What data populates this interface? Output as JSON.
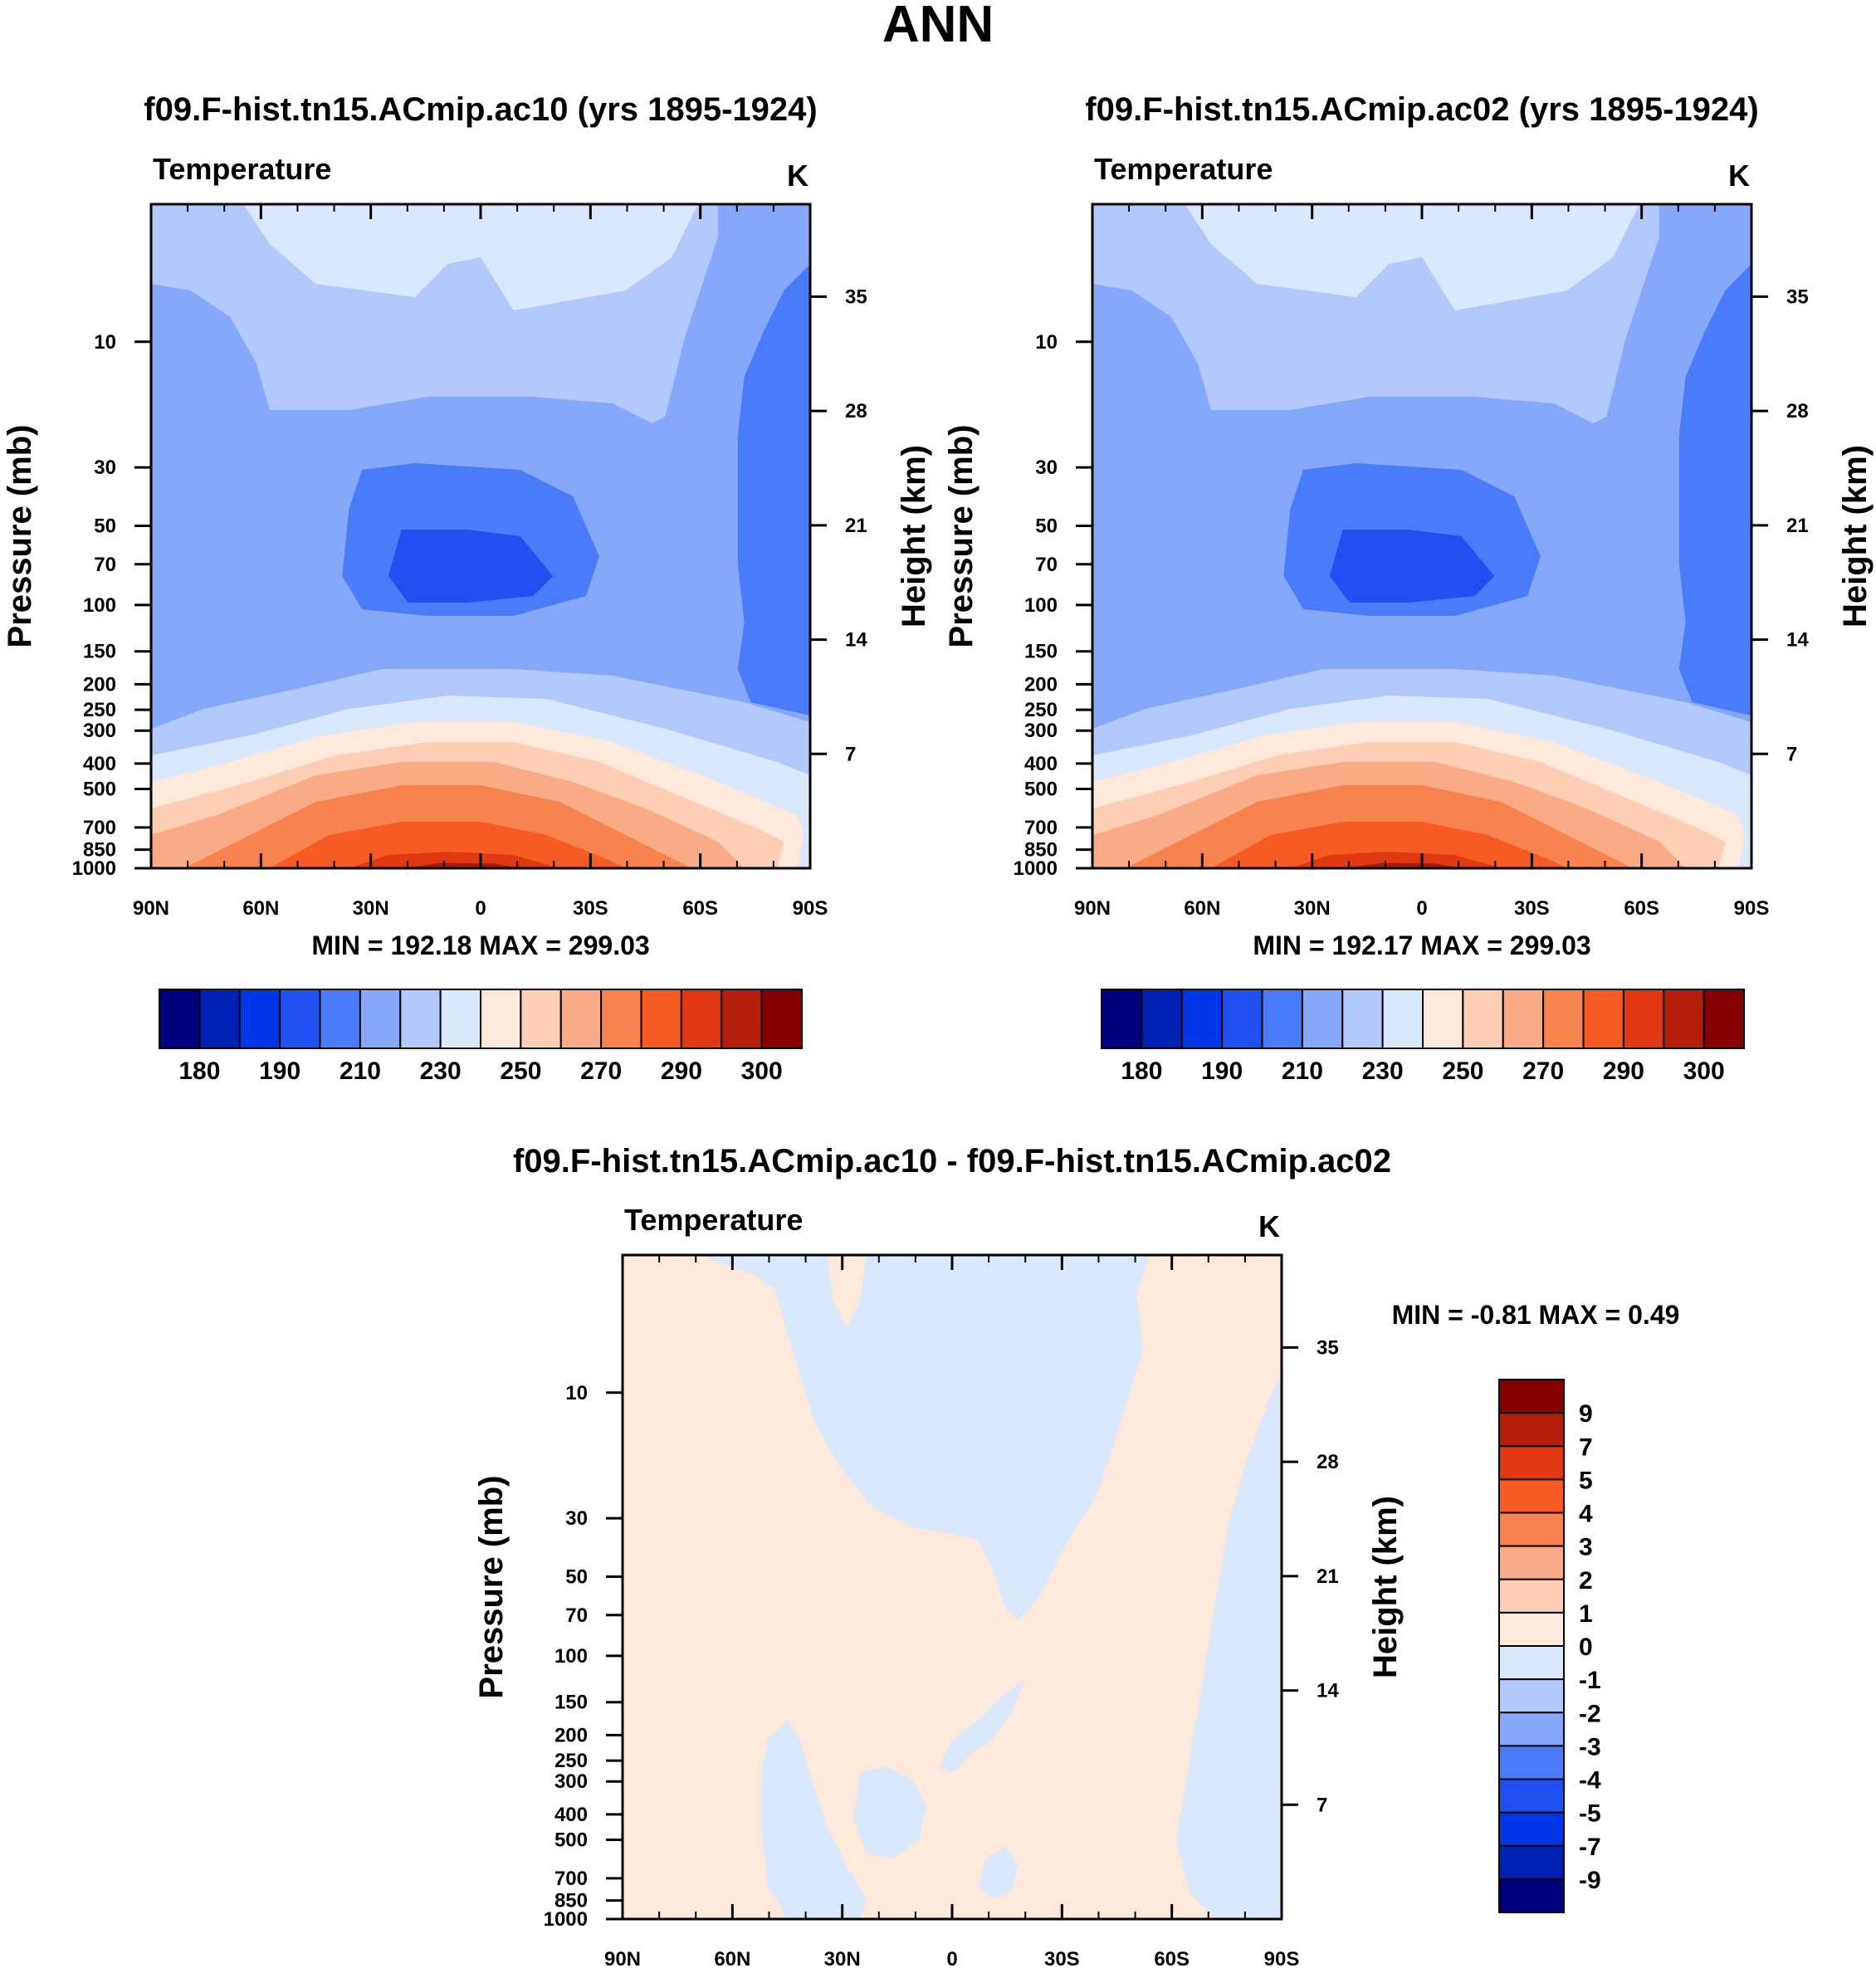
{
  "figure_title": "ANN",
  "colors": {
    "abs_fill_levels": [
      "#b1c9fd",
      "#86a8fb",
      "#4a7cfa",
      "#1f51f2",
      "#3a59e6",
      "#fde8d9",
      "#fdcdb4",
      "#fbaa86",
      "#f9834f",
      "#f85a23",
      "#e03813",
      "#a61c0b"
    ],
    "abs_background": "#86a8fb",
    "diff_pos": "#fde8d9",
    "diff_neg": "#d9e8fd",
    "colorbar_abs": [
      "#00007f",
      "#0022b4",
      "#0036e6",
      "#1f51f2",
      "#4a7cfa",
      "#86a8fb",
      "#b1c9fd",
      "#d9e8fd",
      "#fde8d9",
      "#fdcdb4",
      "#fbaa86",
      "#f9834f",
      "#f85a23",
      "#e03813",
      "#b41f0b",
      "#870000"
    ],
    "colorbar_diff": [
      "#870000",
      "#b41f0b",
      "#e03813",
      "#f85a23",
      "#f9834f",
      "#fbaa86",
      "#fdcdb4",
      "#fde8d9",
      "#d9e8fd",
      "#b1c9fd",
      "#86a8fb",
      "#4a7cfa",
      "#1f51f2",
      "#0036e6",
      "#0022b4",
      "#00007f"
    ]
  },
  "chart_data": [
    {
      "type": "contour",
      "title": "f09.F-hist.tn15.ACmip.ac10 (yrs 1895-1924)",
      "left_string": "Temperature",
      "right_string": "K",
      "ylabel": "Pressure (mb)",
      "ylabel_right": "Height (km)",
      "x_ticks": [
        "90N",
        "60N",
        "30N",
        "0",
        "30S",
        "60S",
        "90S"
      ],
      "y_ticks": [
        "10",
        "30",
        "50",
        "70",
        "100",
        "150",
        "200",
        "250",
        "300",
        "400",
        "500",
        "700",
        "850",
        "1000"
      ],
      "y_ticks_right": [
        "35",
        "28",
        "21",
        "14",
        "7"
      ],
      "stats": "MIN = 192.18  MAX = 299.03",
      "min": 192.18,
      "max": 299.03,
      "colorbar_labels": [
        "180",
        "190",
        "210",
        "230",
        "250",
        "270",
        "290",
        "300"
      ]
    },
    {
      "type": "contour",
      "title": "f09.F-hist.tn15.ACmip.ac02 (yrs 1895-1924)",
      "left_string": "Temperature",
      "right_string": "K",
      "ylabel": "Pressure (mb)",
      "ylabel_right": "Height (km)",
      "x_ticks": [
        "90N",
        "60N",
        "30N",
        "0",
        "30S",
        "60S",
        "90S"
      ],
      "y_ticks": [
        "10",
        "30",
        "50",
        "70",
        "100",
        "150",
        "200",
        "250",
        "300",
        "400",
        "500",
        "700",
        "850",
        "1000"
      ],
      "y_ticks_right": [
        "35",
        "28",
        "21",
        "14",
        "7"
      ],
      "stats": "MIN = 192.17  MAX = 299.03",
      "min": 192.17,
      "max": 299.03,
      "colorbar_labels": [
        "180",
        "190",
        "210",
        "230",
        "250",
        "270",
        "290",
        "300"
      ]
    },
    {
      "type": "contour",
      "title": "f09.F-hist.tn15.ACmip.ac10 - f09.F-hist.tn15.ACmip.ac02",
      "left_string": "Temperature",
      "right_string": "K",
      "ylabel": "Pressure (mb)",
      "ylabel_right": "Height (km)",
      "x_ticks": [
        "90N",
        "60N",
        "30N",
        "0",
        "30S",
        "60S",
        "90S"
      ],
      "y_ticks": [
        "10",
        "30",
        "50",
        "70",
        "100",
        "150",
        "200",
        "250",
        "300",
        "400",
        "500",
        "700",
        "850",
        "1000"
      ],
      "y_ticks_right": [
        "35",
        "28",
        "21",
        "14",
        "7"
      ],
      "stats": "MIN =  -0.81  MAX =   0.49",
      "min": -0.81,
      "max": 0.49,
      "colorbar_labels": [
        "9",
        "7",
        "5",
        "4",
        "3",
        "2",
        "1",
        "0",
        "-1",
        "-2",
        "-3",
        "-4",
        "-5",
        "-7",
        "-9"
      ]
    }
  ]
}
